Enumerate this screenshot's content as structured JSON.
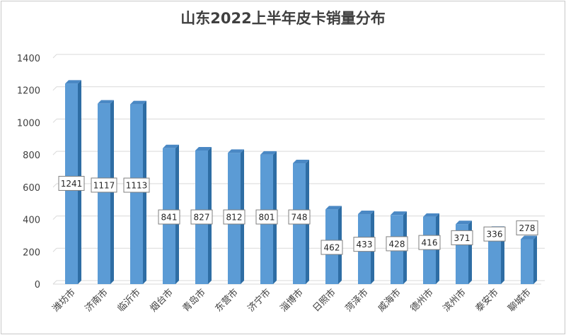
{
  "chart_data": {
    "type": "bar",
    "title": "山东2022上半年皮卡销量分布",
    "xlabel": "",
    "ylabel": "",
    "categories": [
      "潍坊市",
      "济南市",
      "临沂市",
      "烟台市",
      "青岛市",
      "东营市",
      "济宁市",
      "淄博市",
      "日照市",
      "菏泽市",
      "威海市",
      "德州市",
      "滨州市",
      "泰安市",
      "聊城市"
    ],
    "values": [
      1241,
      1117,
      1113,
      841,
      827,
      812,
      801,
      748,
      462,
      433,
      428,
      416,
      371,
      336,
      278
    ],
    "ylim": [
      0,
      1400
    ],
    "yticks": [
      0,
      200,
      400,
      600,
      800,
      1000,
      1200,
      1400
    ],
    "grid": true,
    "legend": "none",
    "colors": {
      "bar_front": "#5b9bd5",
      "bar_side": "#2e6da4",
      "bar_top": "#4a88c4",
      "grid": "#d9d9d9",
      "label_border": "#7f7f7f"
    }
  }
}
